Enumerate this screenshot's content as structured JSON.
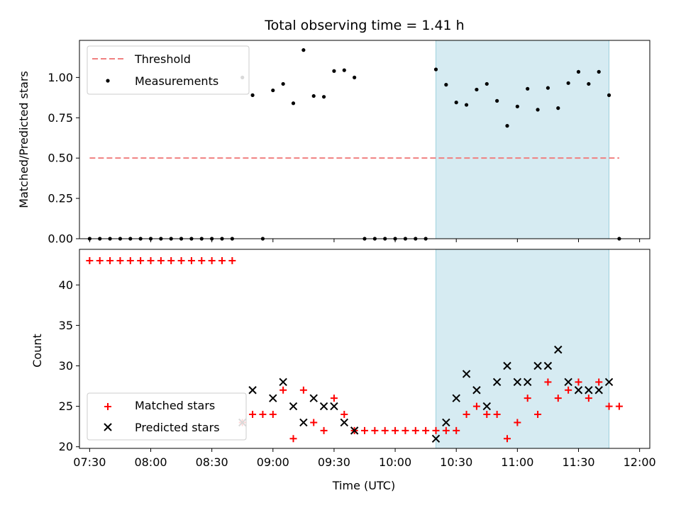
{
  "title": "Total observing time = 1.41 h",
  "chart_data": [
    {
      "type": "scatter",
      "ylabel": "Matched/Predicted stars",
      "xlim": [
        "07:25",
        "12:05"
      ],
      "ylim": [
        0,
        1.23
      ],
      "yticks": [
        "0.00",
        "0.25",
        "0.50",
        "0.75",
        "1.00"
      ],
      "shaded_span": [
        "10:20",
        "11:45"
      ],
      "legend_position": "upper left",
      "series": [
        {
          "name": "Threshold",
          "style": "dashed-line",
          "color": "#f08080",
          "x": [
            "07:30",
            "11:50"
          ],
          "y": [
            0.5,
            0.5
          ]
        },
        {
          "name": "Measurements",
          "style": "dot",
          "color": "#000000",
          "x": [
            "07:30",
            "07:35",
            "07:40",
            "07:45",
            "07:50",
            "07:55",
            "08:00",
            "08:05",
            "08:10",
            "08:15",
            "08:20",
            "08:25",
            "08:30",
            "08:35",
            "08:40",
            "08:45",
            "08:50",
            "08:55",
            "09:00",
            "09:05",
            "09:10",
            "09:15",
            "09:20",
            "09:25",
            "09:30",
            "09:35",
            "09:40",
            "09:45",
            "09:50",
            "09:55",
            "10:00",
            "10:05",
            "10:10",
            "10:15",
            "10:20",
            "10:25",
            "10:30",
            "10:35",
            "10:40",
            "10:45",
            "10:50",
            "10:55",
            "11:00",
            "11:05",
            "11:10",
            "11:15",
            "11:20",
            "11:25",
            "11:30",
            "11:35",
            "11:40",
            "11:45",
            "11:50"
          ],
          "y": [
            0,
            0,
            0,
            0,
            0,
            0,
            0,
            0,
            0,
            0,
            0,
            0,
            0,
            0,
            0,
            1.0,
            0.89,
            0,
            0.92,
            0.96,
            0.84,
            1.17,
            0.885,
            0.88,
            1.04,
            1.045,
            1.0,
            0,
            0,
            0,
            0,
            0,
            0,
            0,
            1.05,
            0.955,
            0.845,
            0.83,
            0.925,
            0.96,
            0.855,
            0.7,
            0.82,
            0.93,
            0.8,
            0.935,
            0.81,
            0.965,
            1.035,
            0.96,
            1.035,
            0.89,
            0
          ]
        }
      ]
    },
    {
      "type": "scatter",
      "xlabel": "Time (UTC)",
      "ylabel": "Count",
      "xlim": [
        "07:25",
        "12:05"
      ],
      "ylim": [
        19.8,
        44.4
      ],
      "yticks": [
        "20",
        "25",
        "30",
        "35",
        "40"
      ],
      "xticks": [
        "07:30",
        "08:00",
        "08:30",
        "09:00",
        "09:30",
        "10:00",
        "10:30",
        "11:00",
        "11:30",
        "12:00"
      ],
      "shaded_span": [
        "10:20",
        "11:45"
      ],
      "legend_position": "lower left",
      "series": [
        {
          "name": "Matched stars",
          "marker": "plus",
          "color": "#ff0000",
          "x": [
            "07:30",
            "07:35",
            "07:40",
            "07:45",
            "07:50",
            "07:55",
            "08:00",
            "08:05",
            "08:10",
            "08:15",
            "08:20",
            "08:25",
            "08:30",
            "08:35",
            "08:40",
            "08:45",
            "08:50",
            "08:55",
            "09:00",
            "09:05",
            "09:10",
            "09:15",
            "09:20",
            "09:25",
            "09:30",
            "09:35",
            "09:40",
            "09:45",
            "09:50",
            "09:55",
            "10:00",
            "10:05",
            "10:10",
            "10:15",
            "10:20",
            "10:25",
            "10:30",
            "10:35",
            "10:40",
            "10:45",
            "10:50",
            "10:55",
            "11:00",
            "11:05",
            "11:10",
            "11:15",
            "11:20",
            "11:25",
            "11:30",
            "11:35",
            "11:40",
            "11:45",
            "11:50"
          ],
          "y": [
            43,
            43,
            43,
            43,
            43,
            43,
            43,
            43,
            43,
            43,
            43,
            43,
            43,
            43,
            43,
            23,
            24,
            24,
            24,
            27,
            21,
            27,
            23,
            22,
            26,
            24,
            22,
            22,
            22,
            22,
            22,
            22,
            22,
            22,
            22,
            22,
            22,
            24,
            25,
            24,
            24,
            21,
            23,
            26,
            24,
            28,
            26,
            27,
            28,
            26,
            28,
            25,
            25
          ]
        },
        {
          "name": "Predicted stars",
          "marker": "x",
          "color": "#000000",
          "x": [
            "08:45",
            "08:50",
            "09:00",
            "09:05",
            "09:10",
            "09:15",
            "09:20",
            "09:25",
            "09:30",
            "09:35",
            "09:40",
            "10:20",
            "10:25",
            "10:30",
            "10:35",
            "10:40",
            "10:45",
            "10:50",
            "10:55",
            "11:00",
            "11:05",
            "11:10",
            "11:15",
            "11:20",
            "11:25",
            "11:30",
            "11:35",
            "11:40",
            "11:45"
          ],
          "y": [
            23,
            27,
            26,
            28,
            25,
            23,
            26,
            25,
            25,
            23,
            22,
            21,
            23,
            26,
            29,
            27,
            25,
            28,
            30,
            28,
            28,
            30,
            30,
            32,
            28,
            27,
            27,
            27,
            28
          ]
        }
      ]
    }
  ]
}
